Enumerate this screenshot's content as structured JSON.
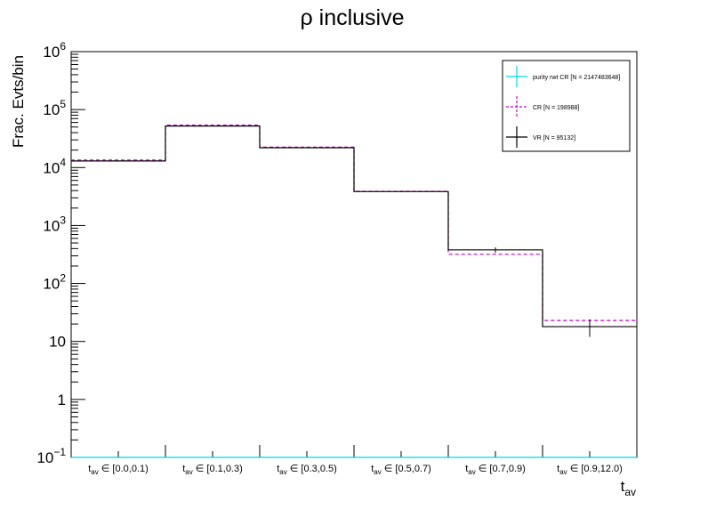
{
  "chart_data": {
    "type": "histogram",
    "title": "ρ inclusive",
    "ylabel": "Frac. Evts/bin",
    "xlabel": {
      "base": "t",
      "sub": "av"
    },
    "yscale": "log",
    "ylim": [
      0.1,
      1000000
    ],
    "y_ticks": [
      {
        "base": "10",
        "exp": "−1"
      },
      {
        "text": "1"
      },
      {
        "text": "10"
      },
      {
        "base": "10",
        "exp": "2"
      },
      {
        "base": "10",
        "exp": "3"
      },
      {
        "base": "10",
        "exp": "4"
      },
      {
        "base": "10",
        "exp": "5"
      },
      {
        "base": "10",
        "exp": "6"
      }
    ],
    "categories": [
      {
        "base": "t",
        "sub": "av",
        "rest": " ∈ [0.0,0.1)"
      },
      {
        "base": "t",
        "sub": "av",
        "rest": " ∈ [0.1,0.3)"
      },
      {
        "base": "t",
        "sub": "av",
        "rest": " ∈ [0.3,0.5)"
      },
      {
        "base": "t",
        "sub": "av",
        "rest": " ∈ [0.5,0.7)"
      },
      {
        "base": "t",
        "sub": "av",
        "rest": " ∈ [0.7,0.9)"
      },
      {
        "base": "t",
        "sub": "av",
        "rest": " ∈ [0.9,12.0)"
      }
    ],
    "series": [
      {
        "name": "purity rwt CR [N = 2147483648]",
        "color": "#00d8e0",
        "style": "solid",
        "values": [
          0.1,
          0.1,
          0.1,
          0.1,
          0.1,
          0.1
        ]
      },
      {
        "name": "CR [N = 198988]",
        "color": "#cc00cc",
        "style": "dashed",
        "values": [
          13500,
          54000,
          22500,
          3900,
          320,
          23
        ]
      },
      {
        "name": "VR [N = 95132]",
        "color": "#000000",
        "style": "solid",
        "values": [
          13000,
          52000,
          22000,
          3850,
          380,
          18
        ],
        "errors": [
          150,
          300,
          200,
          80,
          40,
          6
        ]
      }
    ]
  }
}
